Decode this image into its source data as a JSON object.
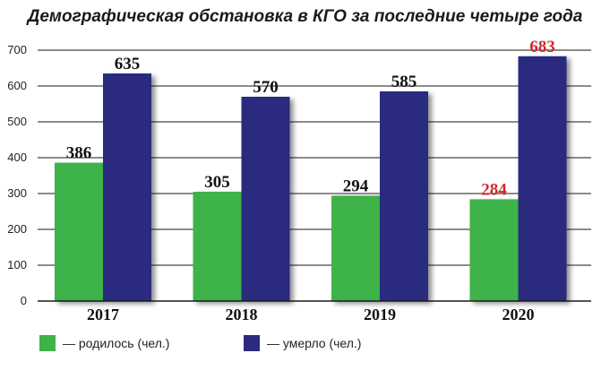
{
  "chart_data": {
    "type": "bar",
    "title": "Демографическая обстановка в КГО за последние четыре года",
    "categories": [
      "2017",
      "2018",
      "2019",
      "2020"
    ],
    "series": [
      {
        "name": "— родилось (чел.)",
        "values": [
          386,
          305,
          294,
          284
        ],
        "color": "#3db34a"
      },
      {
        "name": "— умерло (чел.)",
        "values": [
          635,
          570,
          585,
          683
        ],
        "color": "#2b2a7f"
      }
    ],
    "value_label_colors": [
      [
        "#111111",
        "#111111"
      ],
      [
        "#111111",
        "#111111"
      ],
      [
        "#111111",
        "#111111"
      ],
      [
        "#d12a2a",
        "#d12a2a"
      ]
    ],
    "ylim": [
      0,
      700
    ],
    "yticks": [
      0,
      100,
      200,
      300,
      400,
      500,
      600,
      700
    ],
    "grid": true,
    "legend_position": "bottom-left"
  }
}
